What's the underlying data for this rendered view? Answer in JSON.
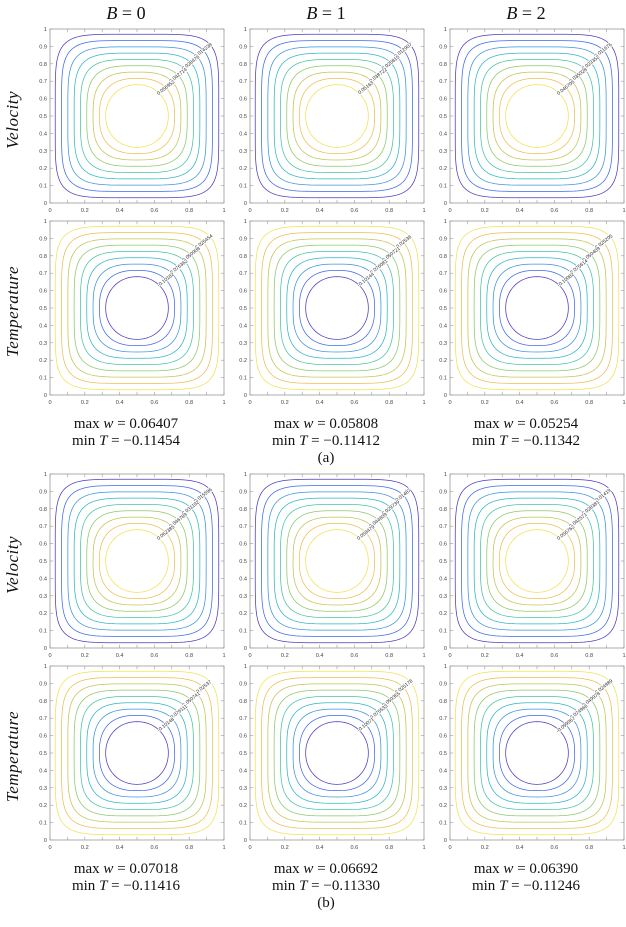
{
  "figure": {
    "headers": [
      {
        "symbol": "B",
        "eq": " = 0"
      },
      {
        "symbol": "B",
        "eq": " = 1"
      },
      {
        "symbol": "B",
        "eq": " = 2"
      }
    ],
    "row_labels": [
      "Velocity",
      "Temperature",
      "Velocity",
      "Temperature"
    ],
    "parts": [
      {
        "label": "(a)",
        "stats": [
          {
            "max_prefix": "max ",
            "max_symbol": "w",
            "max_value": " = 0.06407",
            "min_prefix": "min ",
            "min_symbol": "T",
            "min_value": " = −0.11454"
          },
          {
            "max_prefix": "max ",
            "max_symbol": "w",
            "max_value": " = 0.05808",
            "min_prefix": "min ",
            "min_symbol": "T",
            "min_value": " = −0.11412"
          },
          {
            "max_prefix": "max ",
            "max_symbol": "w",
            "max_value": " = 0.05254",
            "min_prefix": "min ",
            "min_symbol": "T",
            "min_value": " = −0.11342"
          }
        ]
      },
      {
        "label": "(b)",
        "stats": [
          {
            "max_prefix": "max ",
            "max_symbol": "w",
            "max_value": " = 0.07018",
            "min_prefix": "min ",
            "min_symbol": "T",
            "min_value": " = −0.11416"
          },
          {
            "max_prefix": "max ",
            "max_symbol": "w",
            "max_value": " = 0.06692",
            "min_prefix": "min ",
            "min_symbol": "T",
            "min_value": " = −0.11330"
          },
          {
            "max_prefix": "max ",
            "max_symbol": "w",
            "max_value": " = 0.06390",
            "min_prefix": "min ",
            "min_symbol": "T",
            "min_value": " = −0.11246"
          }
        ]
      }
    ]
  },
  "style": {
    "background": "#ffffff",
    "axis_color": "#999999",
    "tick_label_color": "#454545",
    "contour_label_color": "#333333",
    "contour_palette_outer_to_inner_velocity": [
      "#4a3bbd",
      "#3c6ae8",
      "#3b93dc",
      "#2db6c6",
      "#45c5a2",
      "#8bc966",
      "#c5c34f",
      "#eebd51",
      "#f3e052"
    ]
  },
  "chart_data": [
    {
      "type": "contour",
      "part": "a",
      "quantity": "Velocity",
      "condition": "B = 0",
      "palette": "velocity",
      "n_contours": 9,
      "contour_labels": [
        "0.014238",
        "0.028476",
        "0.042714",
        "0.056952"
      ],
      "max_w": 0.06407,
      "xlim": [
        0,
        1
      ],
      "ylim": [
        0,
        1
      ],
      "xticks": [
        "0",
        "0.2",
        "0.4",
        "0.6",
        "0.8",
        "1"
      ],
      "yticks": [
        "0",
        "0.1",
        "0.2",
        "0.3",
        "0.4",
        "0.5",
        "0.6",
        "0.7",
        "0.8",
        "0.9",
        "1"
      ]
    },
    {
      "type": "contour",
      "part": "a",
      "quantity": "Velocity",
      "condition": "B = 1",
      "palette": "velocity",
      "n_contours": 9,
      "contour_labels": [
        "0.012907",
        "0.025815",
        "0.038722",
        "0.05163"
      ],
      "max_w": 0.05808,
      "xlim": [
        0,
        1
      ],
      "ylim": [
        0,
        1
      ],
      "xticks": [
        "0",
        "0.2",
        "0.4",
        "0.6",
        "0.8",
        "1"
      ],
      "yticks": [
        "0",
        "0.1",
        "0.2",
        "0.3",
        "0.4",
        "0.5",
        "0.6",
        "0.7",
        "0.8",
        "0.9",
        "1"
      ]
    },
    {
      "type": "contour",
      "part": "a",
      "quantity": "Velocity",
      "condition": "B = 2",
      "palette": "velocity",
      "n_contours": 9,
      "contour_labels": [
        "0.011676",
        "0.023352",
        "0.035028",
        "0.046705"
      ],
      "max_w": 0.05254,
      "xlim": [
        0,
        1
      ],
      "ylim": [
        0,
        1
      ],
      "xticks": [
        "0",
        "0.2",
        "0.4",
        "0.6",
        "0.8",
        "1"
      ],
      "yticks": [
        "0",
        "0.1",
        "0.2",
        "0.3",
        "0.4",
        "0.5",
        "0.6",
        "0.7",
        "0.8",
        "0.9",
        "1"
      ]
    },
    {
      "type": "contour",
      "part": "a",
      "quantity": "Temperature",
      "condition": "B = 0",
      "palette": "temperature",
      "n_contours": 9,
      "contour_labels": [
        "-0.025454",
        "-0.050908",
        "-0.076362",
        "-0.10182"
      ],
      "min_T": -0.11454,
      "xlim": [
        0,
        1
      ],
      "ylim": [
        0,
        1
      ],
      "xticks": [
        "0",
        "0.2",
        "0.4",
        "0.6",
        "0.8",
        "1"
      ],
      "yticks": [
        "0",
        "0.1",
        "0.2",
        "0.3",
        "0.4",
        "0.5",
        "0.6",
        "0.7",
        "0.8",
        "0.9",
        "1"
      ]
    },
    {
      "type": "contour",
      "part": "a",
      "quantity": "Temperature",
      "condition": "B = 1",
      "palette": "temperature",
      "n_contours": 9,
      "contour_labels": [
        "-0.02536",
        "-0.050721",
        "-0.076081",
        "-0.10144"
      ],
      "min_T": -0.11412,
      "xlim": [
        0,
        1
      ],
      "ylim": [
        0,
        1
      ],
      "xticks": [
        "0",
        "0.2",
        "0.4",
        "0.6",
        "0.8",
        "1"
      ],
      "yticks": [
        "0",
        "0.1",
        "0.2",
        "0.3",
        "0.4",
        "0.5",
        "0.6",
        "0.7",
        "0.8",
        "0.9",
        "1"
      ]
    },
    {
      "type": "contour",
      "part": "a",
      "quantity": "Temperature",
      "condition": "B = 2",
      "palette": "temperature",
      "n_contours": 9,
      "contour_labels": [
        "-0.025205",
        "-0.050409",
        "-0.075614",
        "-0.10082"
      ],
      "min_T": -0.11342,
      "xlim": [
        0,
        1
      ],
      "ylim": [
        0,
        1
      ],
      "xticks": [
        "0",
        "0.2",
        "0.4",
        "0.6",
        "0.8",
        "1"
      ],
      "yticks": [
        "0",
        "0.1",
        "0.2",
        "0.3",
        "0.4",
        "0.5",
        "0.6",
        "0.7",
        "0.8",
        "0.9",
        "1"
      ]
    },
    {
      "type": "contour",
      "part": "b",
      "quantity": "Velocity",
      "condition": "B = 0",
      "palette": "velocity",
      "n_contours": 9,
      "contour_labels": [
        "0.015596",
        "0.031192",
        "0.046789",
        "0.062385"
      ],
      "max_w": 0.07018,
      "xlim": [
        0,
        1
      ],
      "ylim": [
        0,
        1
      ],
      "xticks": [
        "0",
        "0.2",
        "0.4",
        "0.6",
        "0.8",
        "1"
      ],
      "yticks": [
        "0",
        "0.1",
        "0.2",
        "0.3",
        "0.4",
        "0.5",
        "0.6",
        "0.7",
        "0.8",
        "0.9",
        "1"
      ]
    },
    {
      "type": "contour",
      "part": "b",
      "quantity": "Velocity",
      "condition": "B = 1",
      "palette": "velocity",
      "n_contours": 9,
      "contour_labels": [
        "0.01487",
        "0.029739",
        "0.044609",
        "0.059479"
      ],
      "max_w": 0.06692,
      "xlim": [
        0,
        1
      ],
      "ylim": [
        0,
        1
      ],
      "xticks": [
        "0",
        "0.2",
        "0.4",
        "0.6",
        "0.8",
        "1"
      ],
      "yticks": [
        "0",
        "0.1",
        "0.2",
        "0.3",
        "0.4",
        "0.5",
        "0.6",
        "0.7",
        "0.8",
        "0.9",
        "1"
      ]
    },
    {
      "type": "contour",
      "part": "b",
      "quantity": "Velocity",
      "condition": "B = 2",
      "palette": "velocity",
      "n_contours": 9,
      "contour_labels": [
        "0.01419",
        "0.028381",
        "0.042571",
        "0.056762"
      ],
      "max_w": 0.0639,
      "xlim": [
        0,
        1
      ],
      "ylim": [
        0,
        1
      ],
      "xticks": [
        "0",
        "0.2",
        "0.4",
        "0.6",
        "0.8",
        "1"
      ],
      "yticks": [
        "0",
        "0.1",
        "0.2",
        "0.3",
        "0.4",
        "0.5",
        "0.6",
        "0.7",
        "0.8",
        "0.9",
        "1"
      ]
    },
    {
      "type": "contour",
      "part": "b",
      "quantity": "Temperature",
      "condition": "B = 0",
      "palette": "temperature",
      "n_contours": 9,
      "contour_labels": [
        "-0.02537",
        "-0.050741",
        "-0.076111",
        "-0.10148"
      ],
      "min_T": -0.11416,
      "xlim": [
        0,
        1
      ],
      "ylim": [
        0,
        1
      ],
      "xticks": [
        "0",
        "0.2",
        "0.4",
        "0.6",
        "0.8",
        "1"
      ],
      "yticks": [
        "0",
        "0.1",
        "0.2",
        "0.3",
        "0.4",
        "0.5",
        "0.6",
        "0.7",
        "0.8",
        "0.9",
        "1"
      ]
    },
    {
      "type": "contour",
      "part": "b",
      "quantity": "Temperature",
      "condition": "B = 1",
      "palette": "temperature",
      "n_contours": 9,
      "contour_labels": [
        "-0.025178",
        "-0.050355",
        "-0.075533",
        "-0.10071"
      ],
      "min_T": -0.1133,
      "xlim": [
        0,
        1
      ],
      "ylim": [
        0,
        1
      ],
      "xticks": [
        "0",
        "0.2",
        "0.4",
        "0.6",
        "0.8",
        "1"
      ],
      "yticks": [
        "0",
        "0.1",
        "0.2",
        "0.3",
        "0.4",
        "0.5",
        "0.6",
        "0.7",
        "0.8",
        "0.9",
        "1"
      ]
    },
    {
      "type": "contour",
      "part": "b",
      "quantity": "Temperature",
      "condition": "B = 2",
      "palette": "temperature",
      "n_contours": 9,
      "contour_labels": [
        "-0.024989",
        "-0.049978",
        "-0.074966",
        "-0.099957"
      ],
      "min_T": -0.11246,
      "xlim": [
        0,
        1
      ],
      "ylim": [
        0,
        1
      ],
      "xticks": [
        "0",
        "0.2",
        "0.4",
        "0.6",
        "0.8",
        "1"
      ],
      "yticks": [
        "0",
        "0.1",
        "0.2",
        "0.3",
        "0.4",
        "0.5",
        "0.6",
        "0.7",
        "0.8",
        "0.9",
        "1"
      ]
    }
  ]
}
